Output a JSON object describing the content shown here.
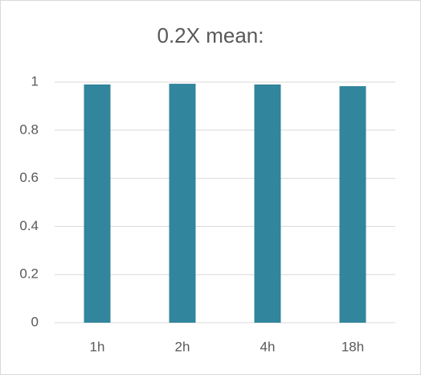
{
  "chart_data": {
    "type": "bar",
    "title": "0.2X mean:",
    "categories": [
      "1h",
      "2h",
      "4h",
      "18h"
    ],
    "values": [
      0.99,
      0.993,
      0.99,
      0.983
    ],
    "color": "#31859c",
    "ylim": [
      0,
      1
    ],
    "yticks": [
      0,
      0.2,
      0.4,
      0.6,
      0.8,
      1
    ],
    "grid": true
  }
}
